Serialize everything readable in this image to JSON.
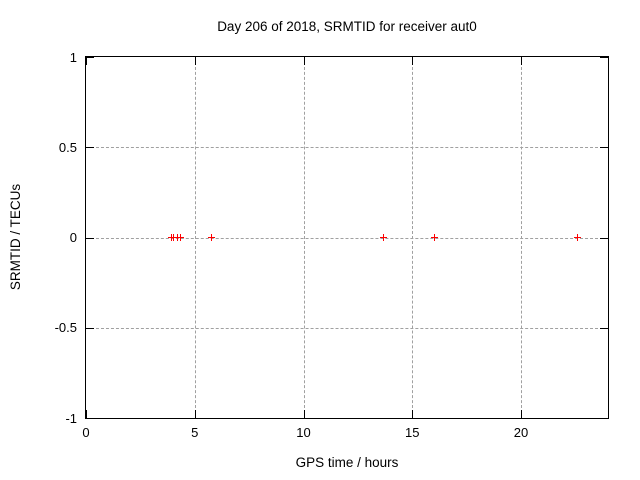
{
  "chart_data": {
    "type": "scatter",
    "title": "Day 206 of 2018, SRMTID for receiver aut0",
    "xlabel": "GPS time / hours",
    "ylabel": "SRMTID / TECUs",
    "xlim": [
      0,
      24
    ],
    "ylim": [
      -1,
      1
    ],
    "xticks": [
      0,
      5,
      10,
      15,
      20
    ],
    "yticks": [
      -1,
      -0.5,
      0,
      0.5,
      1
    ],
    "grid": true,
    "legend": "none",
    "series": [
      {
        "name": "SRMTID",
        "marker": "plus",
        "color": "#ff0000",
        "points": [
          {
            "x": 3.92,
            "y": 0
          },
          {
            "x": 4.02,
            "y": 0
          },
          {
            "x": 4.22,
            "y": 0
          },
          {
            "x": 4.35,
            "y": 0
          },
          {
            "x": 5.75,
            "y": 0
          },
          {
            "x": 13.7,
            "y": 0
          },
          {
            "x": 16.0,
            "y": 0
          },
          {
            "x": 22.6,
            "y": 0
          }
        ]
      }
    ],
    "colors": {
      "background": "#ffffff",
      "axis": "#000000",
      "grid": "#a0a0a0",
      "text": "#000000",
      "marker": "#ff0000"
    }
  }
}
